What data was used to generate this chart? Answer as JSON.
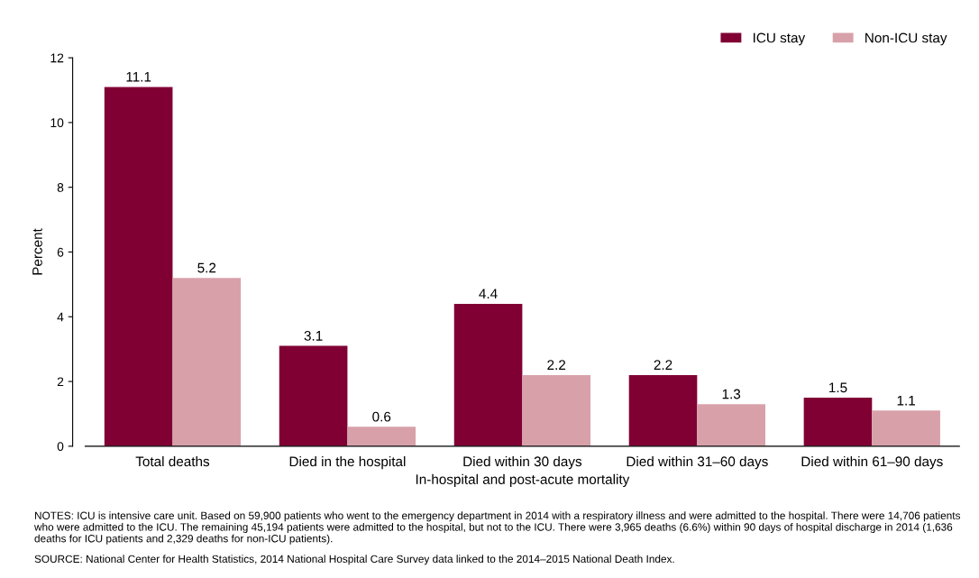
{
  "chart_data": {
    "type": "bar",
    "categories": [
      "Total deaths",
      "Died in the hospital",
      "Died within 30 days",
      "Died within 31–60 days",
      "Died within 61–90 days"
    ],
    "series": [
      {
        "name": "ICU stay",
        "color": "#800034",
        "values": [
          11.1,
          3.1,
          4.4,
          2.2,
          1.5
        ]
      },
      {
        "name": "Non-ICU stay",
        "color": "#d8a1aa",
        "values": [
          5.2,
          0.6,
          2.2,
          1.3,
          1.1
        ]
      }
    ],
    "xlabel": "In-hospital and post-acute mortality",
    "ylabel": "Percent",
    "ylim": [
      0,
      12
    ],
    "yticks": [
      0,
      2,
      4,
      6,
      8,
      10,
      12
    ],
    "data_labels": true,
    "grid": false,
    "legend": "top right",
    "annotations": [
      "NOTES: ICU is intensive care unit. Based on 59,900 patients who went to the emergency department in 2014 with a respiratory illness and were admitted to the hospital. There were 14,706 patients who were admitted to the ICU. The remaining 45,194 patients were admitted to the hospital, but not to the ICU. There were 3,965 deaths (6.6%) within 90 days of hospital discharge in 2014 (1,636 deaths for ICU patients and 2,329 deaths for non-ICU patients).",
      "SOURCE: National Center for Health Statistics, 2014 National Hospital Care Survey data linked to the 2014–2015 National Death Index."
    ]
  }
}
